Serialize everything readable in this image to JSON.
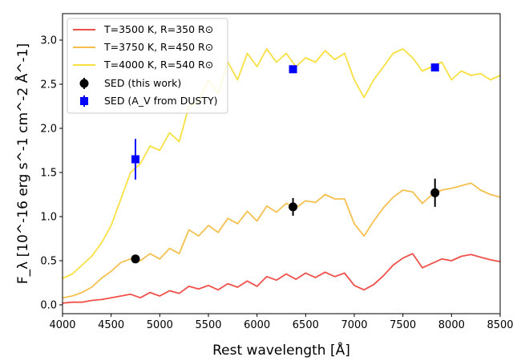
{
  "chart_data": {
    "type": "line",
    "xlabel": "Rest wavelength [Å]",
    "ylabel": "F_λ [10^-16 erg s^-1 cm^-2 Å^-1]",
    "xlim": [
      4000,
      8500
    ],
    "ylim": [
      -0.1,
      3.3
    ],
    "xticks": [
      4000,
      4500,
      5000,
      5500,
      6000,
      6500,
      7000,
      7500,
      8000,
      8500
    ],
    "yticks": [
      0.0,
      0.5,
      1.0,
      1.5,
      2.0,
      2.5,
      3.0
    ],
    "series": [
      {
        "name": "T=3500 K, R=350 R⊙",
        "color": "#f0504a",
        "x": [
          4000,
          4100,
          4200,
          4300,
          4400,
          4500,
          4600,
          4700,
          4800,
          4900,
          5000,
          5100,
          5200,
          5300,
          5400,
          5500,
          5600,
          5700,
          5800,
          5900,
          6000,
          6100,
          6200,
          6300,
          6400,
          6500,
          6600,
          6700,
          6800,
          6900,
          7000,
          7100,
          7200,
          7300,
          7400,
          7500,
          7600,
          7700,
          7800,
          7900,
          8000,
          8100,
          8200,
          8300,
          8400,
          8500
        ],
        "y": [
          0.02,
          0.03,
          0.03,
          0.05,
          0.06,
          0.08,
          0.1,
          0.12,
          0.08,
          0.14,
          0.1,
          0.16,
          0.13,
          0.21,
          0.18,
          0.22,
          0.17,
          0.24,
          0.2,
          0.27,
          0.21,
          0.32,
          0.28,
          0.35,
          0.29,
          0.36,
          0.31,
          0.37,
          0.32,
          0.36,
          0.22,
          0.17,
          0.23,
          0.33,
          0.45,
          0.53,
          0.58,
          0.42,
          0.47,
          0.52,
          0.5,
          0.55,
          0.57,
          0.54,
          0.51,
          0.49
        ]
      },
      {
        "name": "T=3750 K, R=450 R⊙",
        "color": "#f5c050",
        "x": [
          4000,
          4100,
          4200,
          4300,
          4400,
          4500,
          4600,
          4700,
          4800,
          4900,
          5000,
          5100,
          5200,
          5300,
          5400,
          5500,
          5600,
          5700,
          5800,
          5900,
          6000,
          6100,
          6200,
          6300,
          6400,
          6500,
          6600,
          6700,
          6800,
          6900,
          7000,
          7100,
          7200,
          7300,
          7400,
          7500,
          7600,
          7700,
          7800,
          7900,
          8000,
          8100,
          8200,
          8300,
          8400,
          8500
        ],
        "y": [
          0.08,
          0.1,
          0.14,
          0.2,
          0.3,
          0.38,
          0.48,
          0.52,
          0.5,
          0.58,
          0.52,
          0.64,
          0.58,
          0.85,
          0.78,
          0.9,
          0.82,
          0.98,
          0.92,
          1.06,
          0.95,
          1.12,
          1.05,
          1.15,
          1.1,
          1.18,
          1.16,
          1.25,
          1.2,
          1.2,
          0.92,
          0.78,
          0.95,
          1.1,
          1.22,
          1.3,
          1.28,
          1.15,
          1.25,
          1.3,
          1.32,
          1.35,
          1.38,
          1.3,
          1.25,
          1.22
        ]
      },
      {
        "name": "T=4000 K, R=540 R⊙",
        "color": "#f8e040",
        "x": [
          4000,
          4100,
          4200,
          4300,
          4400,
          4500,
          4600,
          4700,
          4800,
          4900,
          5000,
          5100,
          5200,
          5300,
          5400,
          5500,
          5600,
          5700,
          5800,
          5900,
          6000,
          6100,
          6200,
          6300,
          6400,
          6500,
          6600,
          6700,
          6800,
          6900,
          7000,
          7100,
          7200,
          7300,
          7400,
          7500,
          7600,
          7700,
          7800,
          7900,
          8000,
          8100,
          8200,
          8300,
          8400,
          8500
        ],
        "y": [
          0.3,
          0.35,
          0.45,
          0.55,
          0.7,
          0.9,
          1.2,
          1.5,
          1.6,
          1.8,
          1.75,
          1.95,
          1.85,
          2.25,
          2.3,
          2.55,
          2.4,
          2.75,
          2.55,
          2.85,
          2.7,
          2.9,
          2.75,
          2.85,
          2.7,
          2.8,
          2.75,
          2.88,
          2.78,
          2.85,
          2.55,
          2.35,
          2.55,
          2.7,
          2.85,
          2.9,
          2.8,
          2.65,
          2.7,
          2.75,
          2.55,
          2.65,
          2.6,
          2.62,
          2.55,
          2.6
        ]
      }
    ],
    "points": [
      {
        "name": "SED (this work)",
        "marker": "circle",
        "color": "#000000",
        "x": [
          4750,
          6370,
          7830
        ],
        "y": [
          0.52,
          1.11,
          1.27
        ],
        "yerr": [
          0.02,
          0.1,
          0.16
        ]
      },
      {
        "name": "SED (A_V from DUSTY)",
        "marker": "square",
        "color": "#0000ff",
        "x": [
          4750,
          6370,
          7830
        ],
        "y": [
          1.65,
          2.67,
          2.69
        ],
        "yerr": [
          0.23,
          0.03,
          0.03
        ]
      }
    ],
    "legend": {
      "position": "top-left",
      "labels": [
        "T=3500 K, R=350 R⊙",
        "T=3750 K, R=450 R⊙",
        "T=4000 K, R=540 R⊙",
        "SED (this work)",
        "SED (A_V from DUSTY)"
      ]
    },
    "grid": false
  }
}
